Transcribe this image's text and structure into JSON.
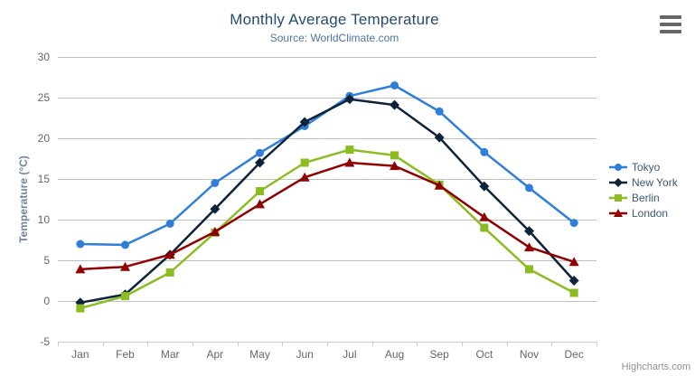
{
  "header": {
    "title": "Monthly Average Temperature",
    "subtitle": "Source: WorldClimate.com"
  },
  "menu": {
    "icon": "hamburger-menu-icon"
  },
  "credit": {
    "label": "Highcharts.com"
  },
  "colors": {
    "title": "#274b6d",
    "subtitle": "#4d759e",
    "axis_title": "#6d869f",
    "tick_label": "#666666",
    "gridline": "#c0c0c0",
    "axis_line": "#c0d0e0",
    "legend_text": "#3e576f",
    "credit": "#909090",
    "background": "#ffffff"
  },
  "chart_data": {
    "type": "line",
    "title": "Monthly Average Temperature",
    "subtitle": "Source: WorldClimate.com",
    "xlabel": "",
    "ylabel": "Temperature (°C)",
    "categories": [
      "Jan",
      "Feb",
      "Mar",
      "Apr",
      "May",
      "Jun",
      "Jul",
      "Aug",
      "Sep",
      "Oct",
      "Nov",
      "Dec"
    ],
    "ylim": [
      -5,
      30
    ],
    "ytick_interval": 5,
    "yticks": [
      -5,
      0,
      5,
      10,
      15,
      20,
      25,
      30
    ],
    "grid": true,
    "legend_position": "right",
    "series": [
      {
        "name": "Tokyo",
        "color": "#2f7ed8",
        "marker": "circle",
        "values": [
          7.0,
          6.9,
          9.5,
          14.5,
          18.2,
          21.5,
          25.2,
          26.5,
          23.3,
          18.3,
          13.9,
          9.6
        ]
      },
      {
        "name": "New York",
        "color": "#0d233a",
        "marker": "diamond",
        "values": [
          -0.2,
          0.8,
          5.7,
          11.3,
          17.0,
          22.0,
          24.8,
          24.1,
          20.1,
          14.1,
          8.6,
          2.5
        ]
      },
      {
        "name": "Berlin",
        "color": "#8bbc21",
        "marker": "square",
        "values": [
          -0.9,
          0.6,
          3.5,
          8.4,
          13.5,
          17.0,
          18.6,
          17.9,
          14.3,
          9.0,
          3.9,
          1.0
        ]
      },
      {
        "name": "London",
        "color": "#910000",
        "marker": "triangle",
        "values": [
          3.9,
          4.2,
          5.7,
          8.5,
          11.9,
          15.2,
          17.0,
          16.6,
          14.2,
          10.3,
          6.6,
          4.8
        ]
      }
    ]
  }
}
